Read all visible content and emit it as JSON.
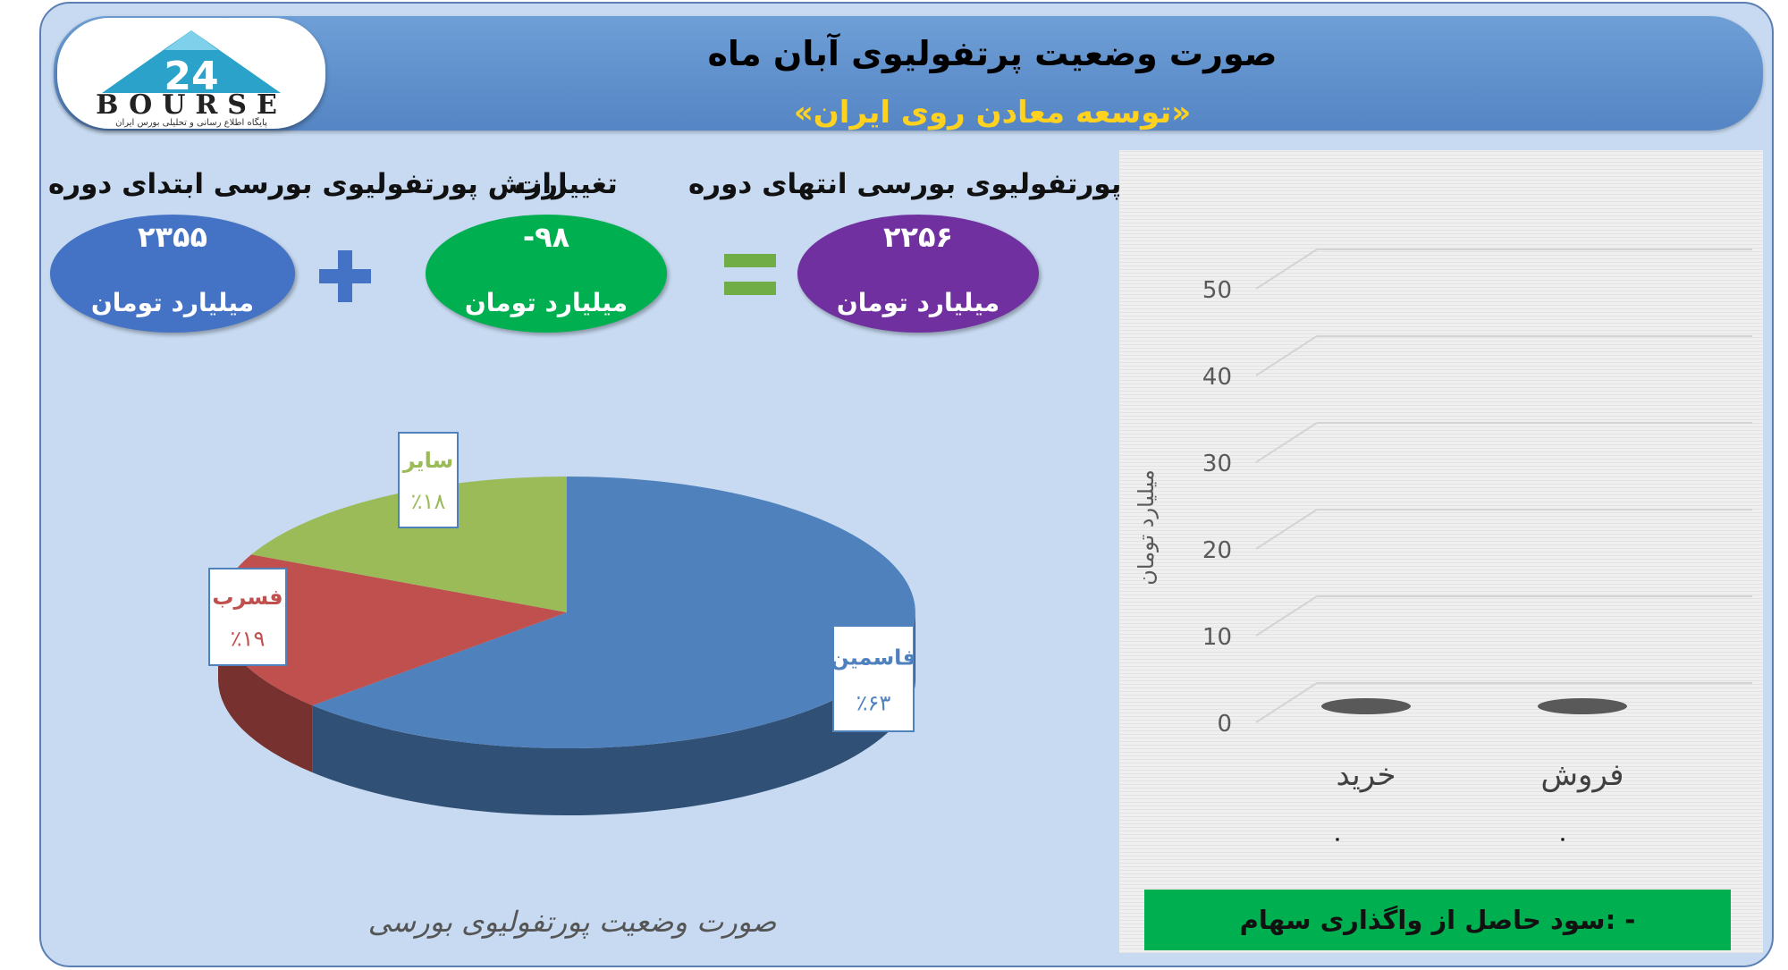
{
  "header": {
    "title": "صورت وضعیت پرتفولیوی آبان ماه",
    "subtitle": "«توسعه معادن روی ایران»"
  },
  "logo": {
    "number": "24",
    "word": "BOURSE",
    "tagline": "پایگاه اطلاع رسانی و تحلیلی بورس ایران"
  },
  "summary": {
    "start": {
      "caption": "ارزش پورتفولیوی بورسی ابتدای دوره",
      "value": "۲۳۵۵",
      "unit": "میلیارد تومان",
      "color": "#4472c4"
    },
    "change": {
      "caption": "تغییرات",
      "value": "-۹۸",
      "unit": "میلیارد تومان",
      "color": "#00b050"
    },
    "end": {
      "caption": "ارزش پورتفولیوی بورسی انتهای دوره",
      "value": "۲۲۵۶",
      "unit": "میلیارد تومان",
      "color": "#7030a0"
    }
  },
  "chart_data": [
    {
      "type": "pie",
      "title": "صورت وضعیت پورتفولیوی بورسی",
      "slices": [
        {
          "label": "فاسمین",
          "value": 63,
          "text": "٪۶۳",
          "color": "#4f81bd"
        },
        {
          "label": "فسرب",
          "value": 19,
          "text": "٪۱۹",
          "color": "#c0504d"
        },
        {
          "label": "سایر",
          "value": 18,
          "text": "٪۱۸",
          "color": "#9bbb59"
        }
      ]
    },
    {
      "type": "bar",
      "categories": [
        "خرید",
        "فروش"
      ],
      "values": [
        0,
        0
      ],
      "ylabel": "میلیارد تومان",
      "ylim": [
        0,
        50
      ],
      "ticks": [
        0,
        10,
        20,
        30,
        40,
        50
      ],
      "bar_color": "#595959",
      "grid": true,
      "category_marks": [
        "۰",
        "۰"
      ]
    }
  ],
  "profit": {
    "label": "سود حاصل از واگذاری سهام: -"
  }
}
